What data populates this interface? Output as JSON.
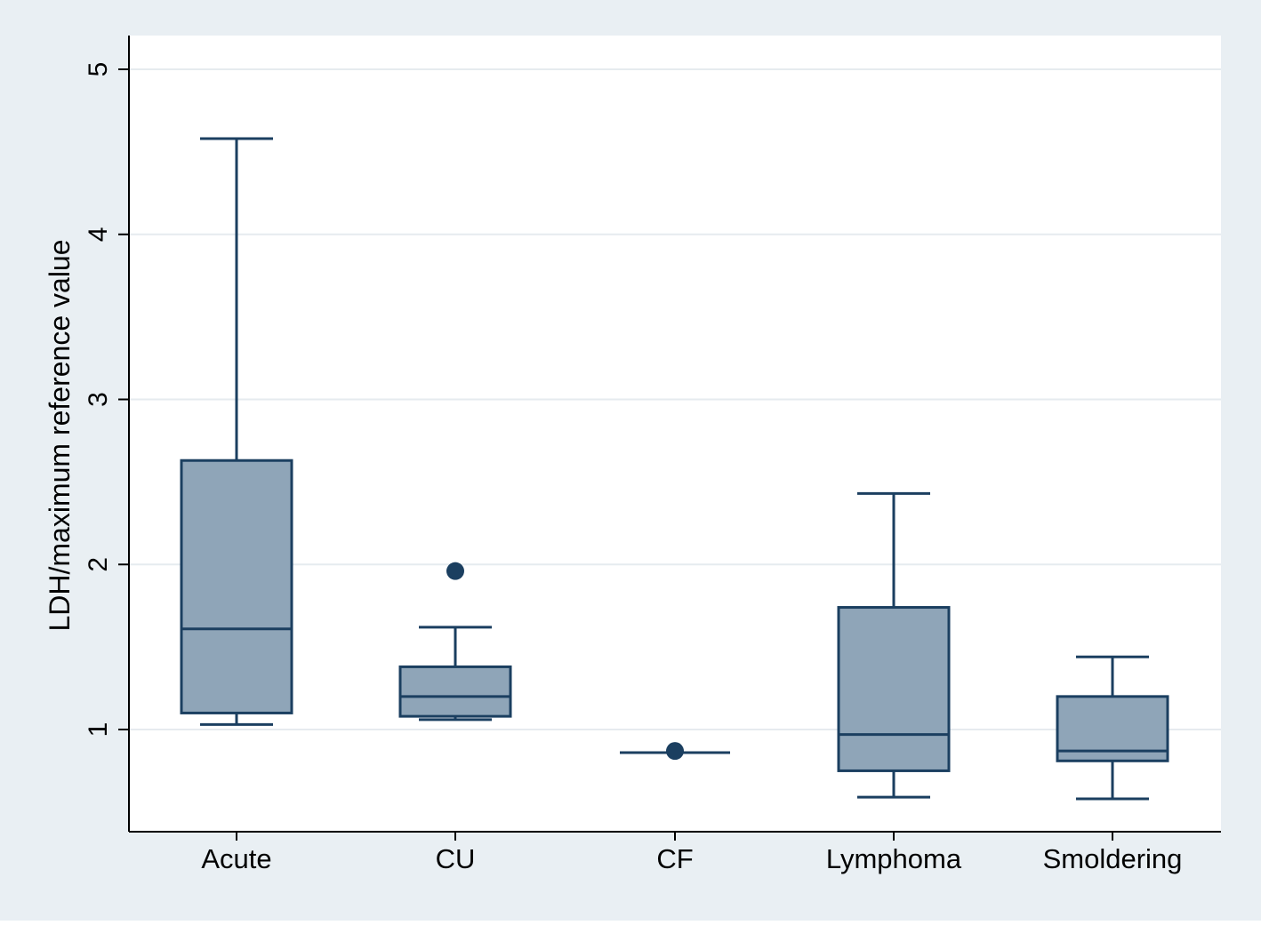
{
  "chart_data": {
    "type": "box",
    "title": "",
    "xlabel": "",
    "ylabel": "LDH/maximum reference value",
    "ylim": [
      0.45,
      5.2
    ],
    "yticks": [
      1,
      2,
      3,
      4,
      5
    ],
    "ytick_labels": [
      "1",
      "2",
      "3",
      "4",
      "5"
    ],
    "grid": true,
    "categories": [
      "Acute",
      "CU",
      "CF",
      "Lymphoma",
      "Smoldering"
    ],
    "boxes": [
      {
        "name": "Acute",
        "whisker_low": 1.03,
        "q1": 1.1,
        "median": 1.61,
        "q3": 2.63,
        "whisker_high": 4.58,
        "outliers": []
      },
      {
        "name": "CU",
        "whisker_low": 1.06,
        "q1": 1.08,
        "median": 1.2,
        "q3": 1.38,
        "whisker_high": 1.62,
        "outliers": [
          1.96
        ]
      },
      {
        "name": "CF",
        "whisker_low": 0.86,
        "q1": 0.86,
        "median": 0.86,
        "q3": 0.86,
        "whisker_high": 0.86,
        "outliers": [
          0.87
        ]
      },
      {
        "name": "Lymphoma",
        "whisker_low": 0.59,
        "q1": 0.75,
        "median": 0.97,
        "q3": 1.74,
        "whisker_high": 2.43,
        "outliers": []
      },
      {
        "name": "Smoldering",
        "whisker_low": 0.58,
        "q1": 0.81,
        "median": 0.87,
        "q3": 1.2,
        "whisker_high": 1.44,
        "outliers": []
      }
    ],
    "colors": {
      "background": "#e9eff3",
      "plot_area": "#ffffff",
      "box_fill": "#8fa5b8",
      "box_stroke": "#1b3f60",
      "outlier": "#1b3f60",
      "grid": "#e6ebef"
    }
  }
}
